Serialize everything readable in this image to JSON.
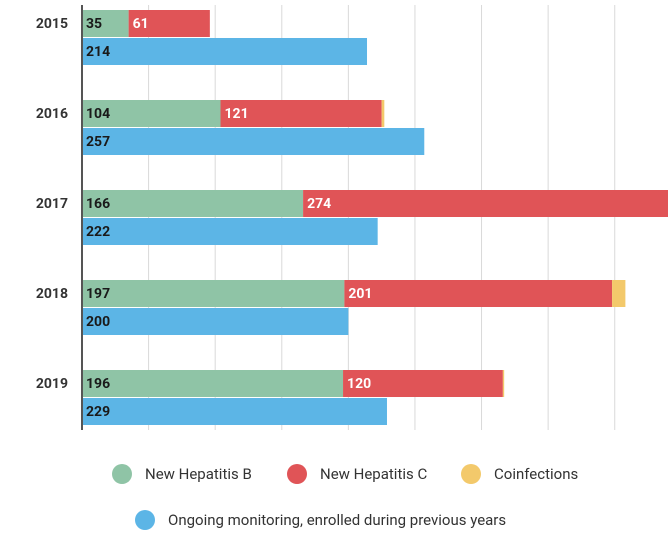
{
  "chart_data": {
    "type": "stacked-bar-horizontal",
    "categories": [
      "2015",
      "2016",
      "2017",
      "2018",
      "2019"
    ],
    "series": [
      {
        "name": "New Hepatitis B",
        "color": "#8fc4a6",
        "stack": 1,
        "labels": true,
        "label_color": "#1a1a1a",
        "values": [
          35,
          104,
          166,
          197,
          196
        ]
      },
      {
        "name": "New Hepatitis C",
        "color": "#e05457",
        "stack": 1,
        "labels": true,
        "label_color": "#ffffff",
        "values": [
          61,
          121,
          274,
          201,
          120
        ]
      },
      {
        "name": "Coinfections",
        "color": "#f3c96b",
        "stack": 1,
        "labels": false,
        "values": [
          0,
          2,
          0,
          10,
          1
        ]
      },
      {
        "name": "Ongoing monitoring, enrolled during previous years",
        "color": "#5cb5e6",
        "stack": 2,
        "labels": true,
        "label_color": "#1a1a1a",
        "values": [
          214,
          257,
          222,
          200,
          229
        ]
      }
    ],
    "xlim": [
      0,
      440
    ],
    "xticks": [
      0,
      50,
      100,
      150,
      200,
      250,
      300,
      350,
      400
    ],
    "grid": true,
    "legend": "bottom"
  }
}
